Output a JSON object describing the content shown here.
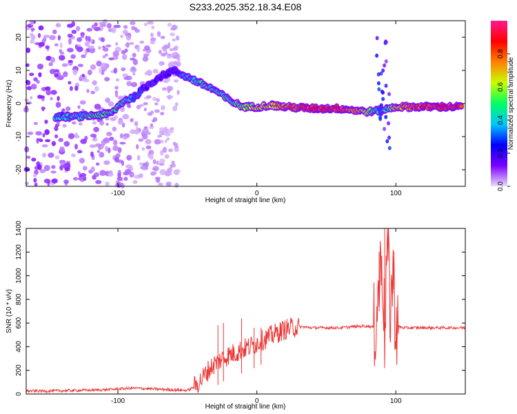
{
  "title": "S233.2025.352.18.34.E08",
  "chart_data": [
    {
      "type": "heatmap",
      "xlabel": "Height of straight line (km)",
      "ylabel": "Frequency (Hz)",
      "xlim": [
        -166,
        150
      ],
      "ylim": [
        -25,
        25
      ],
      "x_ticks": [
        -100,
        0,
        100
      ],
      "y_ticks": [
        -20,
        -10,
        0,
        10,
        20
      ],
      "colorbar": {
        "label": "Normalized spectral amplitude",
        "range": [
          0.0,
          1.0
        ],
        "ticks": [
          "0.0",
          "0.2",
          "0.4",
          "0.6",
          "0.8"
        ],
        "tick_values": [
          0.0,
          0.2,
          0.4,
          0.6,
          0.8
        ],
        "colors": [
          "#eadcf8",
          "#7a00ff",
          "#0000ff",
          "#00c8ff",
          "#00ff60",
          "#c8ff00",
          "#ff8000",
          "#ff0000",
          "#ff1a90"
        ]
      },
      "ridge": [
        {
          "x": -145,
          "f": -4,
          "a": 0.35
        },
        {
          "x": -130,
          "f": -4,
          "a": 0.4
        },
        {
          "x": -115,
          "f": -3.5,
          "a": 0.45
        },
        {
          "x": -105,
          "f": -3,
          "a": 0.5
        },
        {
          "x": -95,
          "f": 1,
          "a": 0.4
        },
        {
          "x": -88,
          "f": 2,
          "a": 0.35
        },
        {
          "x": -80,
          "f": 5,
          "a": 0.3
        },
        {
          "x": -70,
          "f": 8,
          "a": 0.25
        },
        {
          "x": -60,
          "f": 10,
          "a": 0.2
        },
        {
          "x": -50,
          "f": 8,
          "a": 0.35
        },
        {
          "x": -40,
          "f": 6,
          "a": 0.5
        },
        {
          "x": -30,
          "f": 4,
          "a": 0.4
        },
        {
          "x": -20,
          "f": 1,
          "a": 0.45
        },
        {
          "x": -10,
          "f": -1,
          "a": 0.55
        },
        {
          "x": 0,
          "f": -1,
          "a": 0.6
        },
        {
          "x": 10,
          "f": -0.5,
          "a": 0.7
        },
        {
          "x": 20,
          "f": -1,
          "a": 0.75
        },
        {
          "x": 40,
          "f": -1.5,
          "a": 0.85
        },
        {
          "x": 60,
          "f": -1.5,
          "a": 0.85
        },
        {
          "x": 80,
          "f": -2.5,
          "a": 0.6
        },
        {
          "x": 90,
          "f": -2,
          "a": 0.3
        },
        {
          "x": 100,
          "f": -1,
          "a": 0.65
        },
        {
          "x": 115,
          "f": -1,
          "a": 0.8
        },
        {
          "x": 130,
          "f": -1,
          "a": 0.85
        },
        {
          "x": 148,
          "f": -1,
          "a": 0.85
        }
      ]
    },
    {
      "type": "line",
      "xlabel": "Height of straight line (km)",
      "ylabel": "SNR (10 * v/v)",
      "xlim": [
        -166,
        150
      ],
      "ylim": [
        0,
        1400
      ],
      "x_ticks": [
        -100,
        0,
        100
      ],
      "y_ticks": [
        0,
        200,
        400,
        600,
        800,
        1000,
        1200,
        1400
      ],
      "series": [
        {
          "name": "SNR",
          "color": "#ee3333",
          "x": [
            -166,
            -150,
            -130,
            -110,
            -90,
            -80,
            -70,
            -60,
            -50,
            -45,
            -40,
            -35,
            -30,
            -25,
            -20,
            -15,
            -10,
            -5,
            0,
            5,
            10,
            15,
            20,
            25,
            30,
            40,
            50,
            60,
            70,
            80,
            85,
            88,
            90,
            92,
            94,
            96,
            98,
            100,
            105,
            110,
            120,
            130,
            140,
            150
          ],
          "values": [
            25,
            25,
            30,
            35,
            50,
            45,
            40,
            35,
            30,
            60,
            120,
            200,
            260,
            300,
            330,
            350,
            380,
            400,
            430,
            460,
            490,
            520,
            545,
            560,
            570,
            560,
            560,
            560,
            570,
            575,
            560,
            900,
            1200,
            500,
            1380,
            700,
            1050,
            580,
            560,
            560,
            560,
            560,
            560,
            560
          ]
        }
      ],
      "peaks": [
        {
          "x": -28,
          "y": 580
        },
        {
          "x": -24,
          "y": 600
        },
        {
          "x": -11,
          "y": 640
        },
        {
          "x": -2,
          "y": 560
        },
        {
          "x": 3,
          "y": 560
        },
        {
          "x": 88,
          "y": 1200
        },
        {
          "x": 92,
          "y": 1400
        },
        {
          "x": 98,
          "y": 1220
        }
      ]
    }
  ]
}
